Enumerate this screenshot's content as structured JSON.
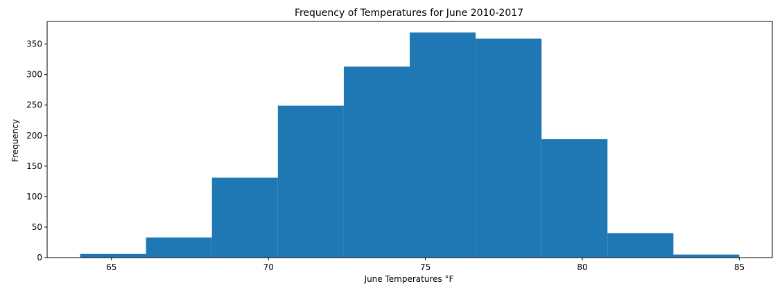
{
  "chart_data": {
    "type": "bar",
    "title": "Frequency of Temperatures for June 2010-2017",
    "xlabel": "June Temperatures °F",
    "ylabel": "Frequency",
    "bin_edges": [
      64.0,
      66.1,
      68.2,
      70.3,
      72.4,
      74.5,
      76.6,
      78.7,
      80.8,
      82.9,
      85.0
    ],
    "values": [
      6,
      33,
      131,
      249,
      313,
      369,
      359,
      194,
      40,
      5
    ],
    "xlim": [
      62.95,
      86.05
    ],
    "ylim": [
      0,
      387
    ],
    "xticks": [
      65,
      70,
      75,
      80,
      85
    ],
    "yticks": [
      0,
      50,
      100,
      150,
      200,
      250,
      300,
      350
    ],
    "bar_color": "#1f77b4",
    "grid": false,
    "legend": "none"
  }
}
